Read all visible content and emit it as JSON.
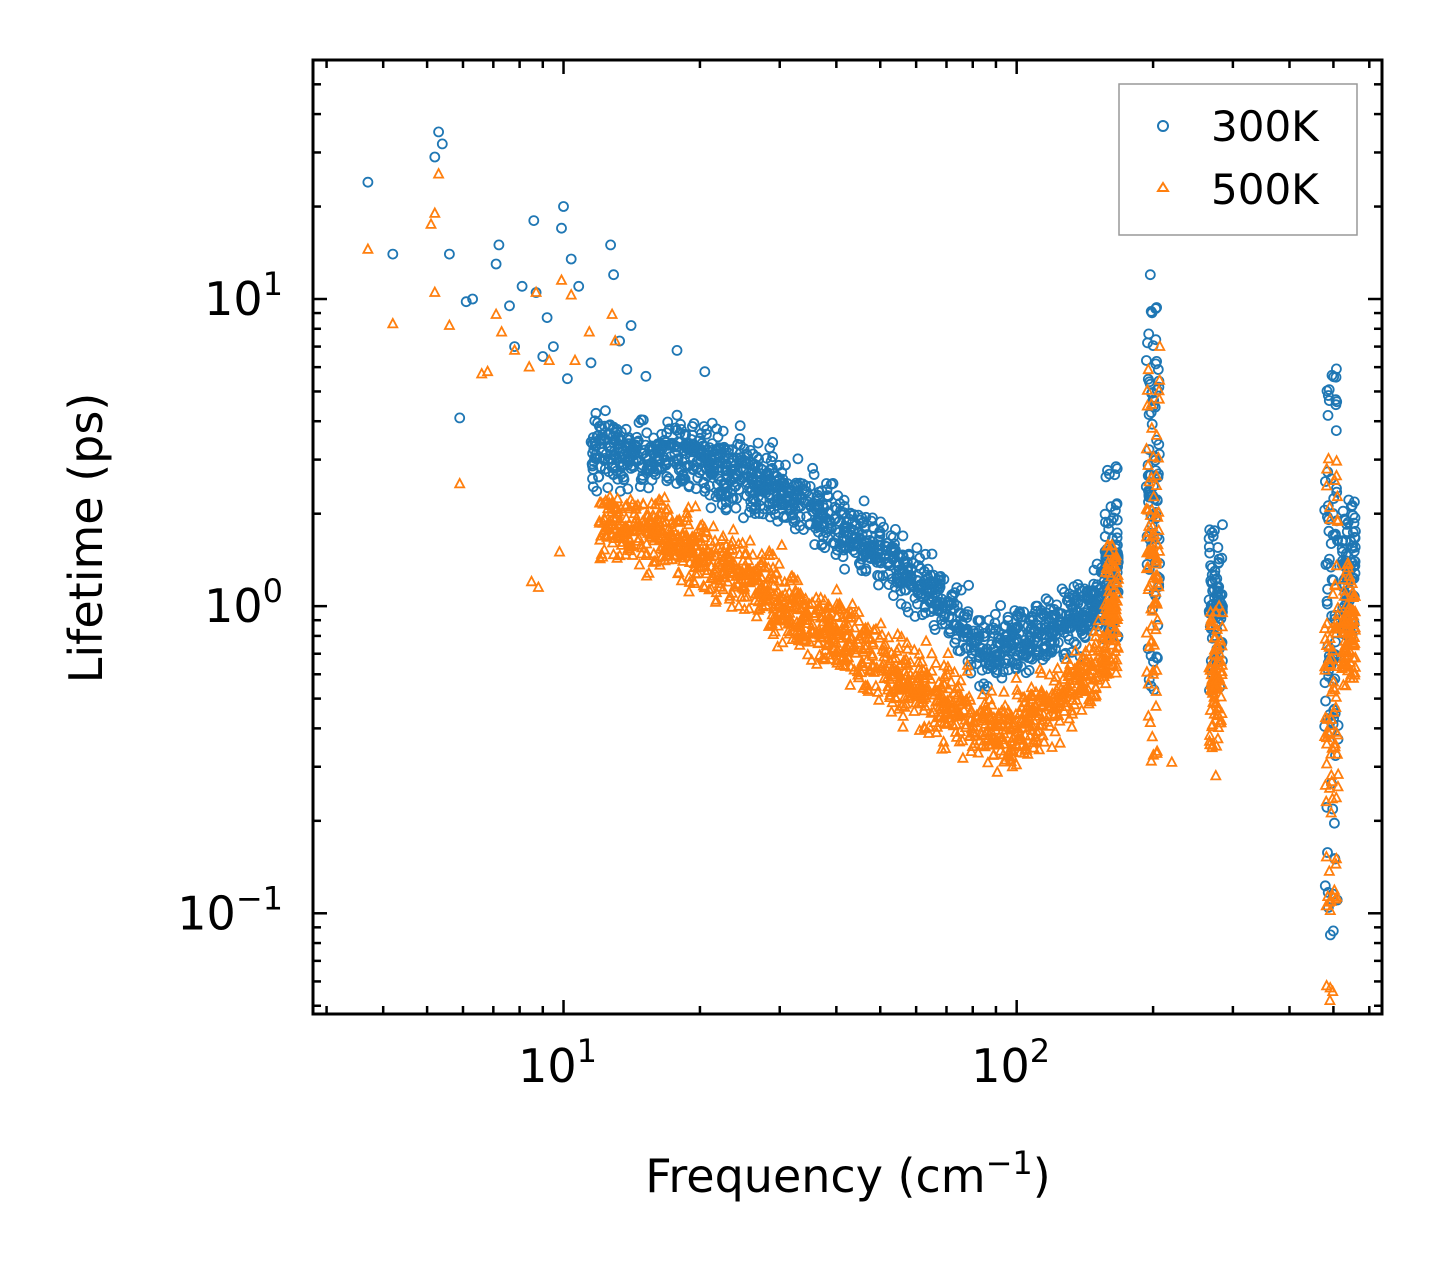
{
  "chart_data": {
    "type": "scatter",
    "xscale": "log",
    "yscale": "log",
    "xlim": [
      2.8,
      640
    ],
    "ylim": [
      0.047,
      60
    ],
    "xlabel": "Frequency (cm",
    "xlabel_sup": "−1",
    "xlabel_close": ")",
    "ylabel": "Lifetime (ps)",
    "legend_position": "top-right",
    "x_major_ticks": [
      {
        "value": 10,
        "base": "10",
        "exp": "1"
      },
      {
        "value": 100,
        "base": "10",
        "exp": "2"
      }
    ],
    "y_major_ticks": [
      {
        "value": 0.1,
        "base": "10",
        "exp": "−1"
      },
      {
        "value": 1,
        "base": "10",
        "exp": "0"
      },
      {
        "value": 10,
        "base": "10",
        "exp": "1"
      }
    ],
    "series": [
      {
        "name": "300K",
        "color": "#1f77b4",
        "marker": "circle",
        "points": [
          [
            3.7,
            24
          ],
          [
            4.2,
            14
          ],
          [
            5.2,
            29
          ],
          [
            5.3,
            35
          ],
          [
            5.4,
            32
          ],
          [
            5.6,
            14
          ],
          [
            5.9,
            4.1
          ],
          [
            6.1,
            9.8
          ],
          [
            6.3,
            10
          ],
          [
            7.1,
            13
          ],
          [
            7.2,
            15
          ],
          [
            7.6,
            9.5
          ],
          [
            7.8,
            7
          ],
          [
            8.1,
            11
          ],
          [
            8.6,
            18
          ],
          [
            8.7,
            10.5
          ],
          [
            9.0,
            6.5
          ],
          [
            9.2,
            8.7
          ],
          [
            9.5,
            7
          ],
          [
            10.0,
            20
          ],
          [
            9.9,
            17
          ],
          [
            10.4,
            13.5
          ],
          [
            10.8,
            11
          ],
          [
            12.7,
            15
          ],
          [
            12.9,
            12
          ],
          [
            13.3,
            7.3
          ],
          [
            14.1,
            8.2
          ],
          [
            17.8,
            6.8
          ],
          [
            20.5,
            5.8
          ],
          [
            13.8,
            5.9
          ],
          [
            15.2,
            5.6
          ],
          [
            11.5,
            6.2
          ],
          [
            10.2,
            5.5
          ],
          [
            88,
            0.75
          ],
          [
            95,
            0.72
          ]
        ],
        "clusters": [
          {
            "x": 162,
            "y_min": 0.75,
            "y_max": 2.9
          },
          {
            "x": 200,
            "y_min": 0.5,
            "y_max": 12
          },
          {
            "x": 275,
            "y_min": 0.5,
            "y_max": 1.9
          },
          {
            "x": 495,
            "y_min": 0.075,
            "y_max": 6.2
          },
          {
            "x": 540,
            "y_min": 0.8,
            "y_max": 2.3
          }
        ]
      },
      {
        "name": "500K",
        "color": "#ff7f0e",
        "marker": "triangle",
        "points": [
          [
            3.7,
            14.5
          ],
          [
            4.2,
            8.3
          ],
          [
            5.1,
            17.5
          ],
          [
            5.2,
            19
          ],
          [
            5.3,
            25.5
          ],
          [
            5.2,
            10.5
          ],
          [
            5.6,
            8.2
          ],
          [
            5.9,
            2.5
          ],
          [
            6.8,
            5.8
          ],
          [
            6.6,
            5.7
          ],
          [
            7.1,
            8.9
          ],
          [
            7.3,
            7.8
          ],
          [
            7.8,
            6.8
          ],
          [
            8.4,
            6
          ],
          [
            8.7,
            10.5
          ],
          [
            9.3,
            6.3
          ],
          [
            9.9,
            11.5
          ],
          [
            10.4,
            10.3
          ],
          [
            10.6,
            6.3
          ],
          [
            11.4,
            7.8
          ],
          [
            12.8,
            8.9
          ],
          [
            13.0,
            7.3
          ],
          [
            8.5,
            1.2
          ],
          [
            8.8,
            1.15
          ],
          [
            9.8,
            1.5
          ],
          [
            220,
            0.31
          ],
          [
            275,
            0.28
          ],
          [
            276,
            0.35
          ]
        ],
        "clusters": [
          {
            "x": 162,
            "y_min": 0.6,
            "y_max": 1.6
          },
          {
            "x": 200,
            "y_min": 0.31,
            "y_max": 7.2
          },
          {
            "x": 275,
            "y_min": 0.33,
            "y_max": 1.0
          },
          {
            "x": 495,
            "y_min": 0.047,
            "y_max": 3.4
          },
          {
            "x": 540,
            "y_min": 0.55,
            "y_max": 1.4
          }
        ]
      }
    ],
    "bands": [
      {
        "series": "300K",
        "x_range": [
          11.5,
          160
        ],
        "y_at": [
          [
            11.5,
            3.2
          ],
          [
            20,
            3.0
          ],
          [
            30,
            2.4
          ],
          [
            50,
            1.5
          ],
          [
            70,
            1.0
          ],
          [
            85,
            0.72
          ],
          [
            100,
            0.78
          ],
          [
            140,
            0.95
          ],
          [
            160,
            1.1
          ]
        ],
        "spread": 0.18
      },
      {
        "series": "500K",
        "x_range": [
          12,
          160
        ],
        "y_at": [
          [
            12,
            1.9
          ],
          [
            17,
            1.65
          ],
          [
            25,
            1.25
          ],
          [
            40,
            0.8
          ],
          [
            60,
            0.55
          ],
          [
            80,
            0.42
          ],
          [
            95,
            0.38
          ],
          [
            120,
            0.48
          ],
          [
            160,
            0.7
          ]
        ],
        "spread": 0.2
      }
    ]
  }
}
